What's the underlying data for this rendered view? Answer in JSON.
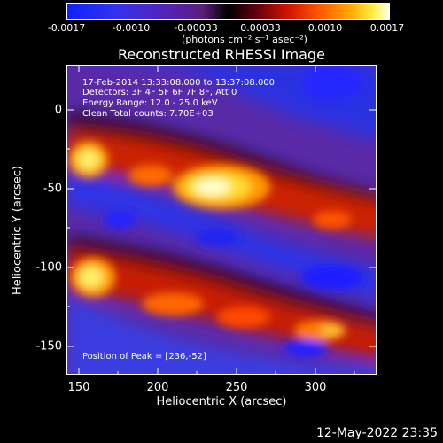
{
  "colorbar": {
    "ticks": [
      "-0.0017",
      "-0.0010",
      "-0.00033",
      "0.00033",
      "0.0010",
      "0.0017"
    ],
    "units": "(photons cm⁻² s⁻¹ asec⁻²)"
  },
  "title": "Reconstructed RHESSI Image",
  "info": {
    "line1": "17-Feb-2014 13:33:08.000 to 13:37:08.000",
    "line2": "Detectors: 3F 4F 5F 6F 7F 8F, Att 0",
    "line3": "Energy Range: 12.0 - 25.0 keV",
    "line4": "Clean     Total counts: 7.70E+03"
  },
  "peak": "Position of Peak = [236,-52]",
  "xaxis": {
    "title": "Heliocentric X (arcsec)",
    "ticks": [
      "150",
      "200",
      "250",
      "300"
    ]
  },
  "yaxis": {
    "title": "Heliocentric Y (arcsec)",
    "ticks": [
      "0",
      "-50",
      "-100",
      "-150"
    ]
  },
  "timestamp": "12-May-2022 23:35"
}
